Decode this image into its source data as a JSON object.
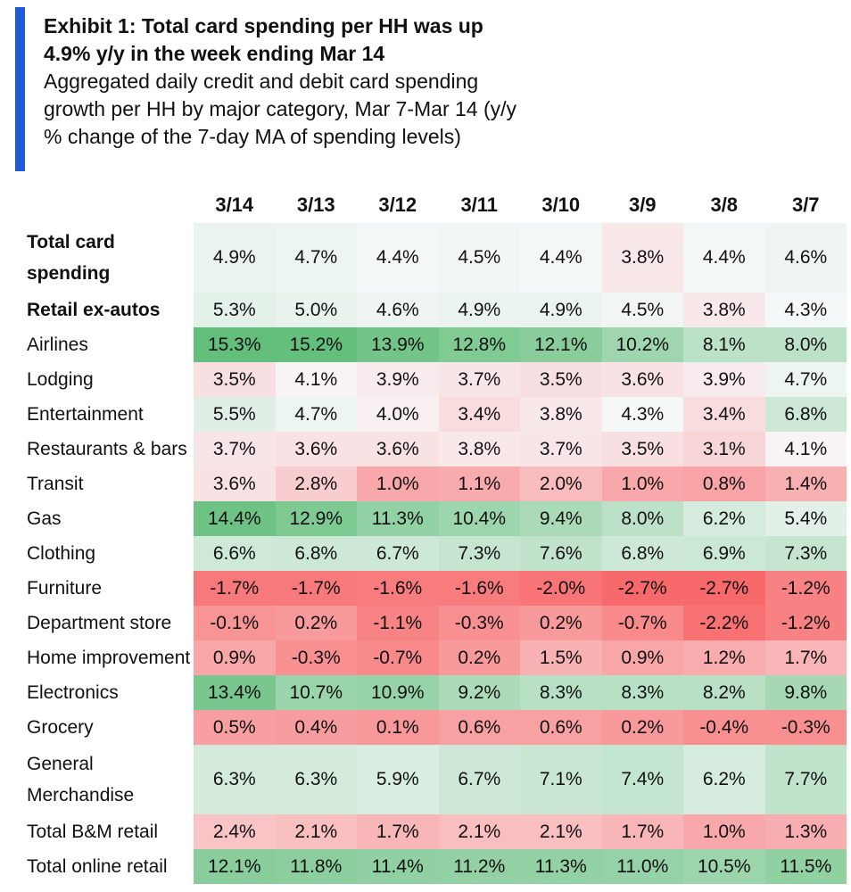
{
  "exhibit": {
    "title_line1": "Exhibit 1: Total card spending per HH was up",
    "title_line2": "4.9% y/y in the week ending Mar 14",
    "subtitle_line1": "Aggregated daily credit and debit card spending",
    "subtitle_line2": "growth per HH by major category, Mar 7-Mar 14 (y/y",
    "subtitle_line3": "% change of the 7-day MA of spending levels)"
  },
  "colors": {
    "accent": "#1f5bd6",
    "positive": "#63be7b",
    "neutral": "#f8f9fb",
    "negative": "#f8696b"
  },
  "chart_data": {
    "type": "table",
    "title": "Exhibit 1: Total card spending per HH was up 4.9% y/y in the week ending Mar 14",
    "unit": "%",
    "columns": [
      "3/14",
      "3/13",
      "3/12",
      "3/11",
      "3/10",
      "3/9",
      "3/8",
      "3/7"
    ],
    "rows": [
      {
        "label_lines": [
          "Total card",
          "spending"
        ],
        "bold": true,
        "values": [
          "4.9%",
          "4.7%",
          "4.4%",
          "4.5%",
          "4.4%",
          "3.8%",
          "4.4%",
          "4.6%"
        ]
      },
      {
        "label_lines": [
          "Retail ex-autos"
        ],
        "bold": true,
        "values": [
          "5.3%",
          "5.0%",
          "4.6%",
          "4.9%",
          "4.9%",
          "4.5%",
          "3.8%",
          "4.3%"
        ]
      },
      {
        "label_lines": [
          "Airlines"
        ],
        "bold": false,
        "values": [
          "15.3%",
          "15.2%",
          "13.9%",
          "12.8%",
          "12.1%",
          "10.2%",
          "8.1%",
          "8.0%"
        ]
      },
      {
        "label_lines": [
          "Lodging"
        ],
        "bold": false,
        "values": [
          "3.5%",
          "4.1%",
          "3.9%",
          "3.7%",
          "3.5%",
          "3.6%",
          "3.9%",
          "4.7%"
        ]
      },
      {
        "label_lines": [
          "Entertainment"
        ],
        "bold": false,
        "values": [
          "5.5%",
          "4.7%",
          "4.0%",
          "3.4%",
          "3.8%",
          "4.3%",
          "3.4%",
          "6.8%"
        ]
      },
      {
        "label_lines": [
          "Restaurants & bars"
        ],
        "bold": false,
        "values": [
          "3.7%",
          "3.6%",
          "3.6%",
          "3.8%",
          "3.7%",
          "3.5%",
          "3.1%",
          "4.1%"
        ]
      },
      {
        "label_lines": [
          "Transit"
        ],
        "bold": false,
        "values": [
          "3.6%",
          "2.8%",
          "1.0%",
          "1.1%",
          "2.0%",
          "1.0%",
          "0.8%",
          "1.4%"
        ]
      },
      {
        "label_lines": [
          "Gas"
        ],
        "bold": false,
        "values": [
          "14.4%",
          "12.9%",
          "11.3%",
          "10.4%",
          "9.4%",
          "8.0%",
          "6.2%",
          "5.4%"
        ]
      },
      {
        "label_lines": [
          "Clothing"
        ],
        "bold": false,
        "values": [
          "6.6%",
          "6.8%",
          "6.7%",
          "7.3%",
          "7.6%",
          "6.8%",
          "6.9%",
          "7.3%"
        ]
      },
      {
        "label_lines": [
          "Furniture"
        ],
        "bold": false,
        "values": [
          "-1.7%",
          "-1.7%",
          "-1.6%",
          "-1.6%",
          "-2.0%",
          "-2.7%",
          "-2.7%",
          "-1.2%"
        ]
      },
      {
        "label_lines": [
          "Department store"
        ],
        "bold": false,
        "values": [
          "-0.1%",
          "0.2%",
          "-1.1%",
          "-0.3%",
          "0.2%",
          "-0.7%",
          "-2.2%",
          "-1.2%"
        ]
      },
      {
        "label_lines": [
          "Home improvement"
        ],
        "bold": false,
        "values": [
          "0.9%",
          "-0.3%",
          "-0.7%",
          "0.2%",
          "1.5%",
          "0.9%",
          "1.2%",
          "1.7%"
        ]
      },
      {
        "label_lines": [
          "Electronics"
        ],
        "bold": false,
        "values": [
          "13.4%",
          "10.7%",
          "10.9%",
          "9.2%",
          "8.3%",
          "8.3%",
          "8.2%",
          "9.8%"
        ]
      },
      {
        "label_lines": [
          "Grocery"
        ],
        "bold": false,
        "values": [
          "0.5%",
          "0.4%",
          "0.1%",
          "0.6%",
          "0.6%",
          "0.2%",
          "-0.4%",
          "-0.3%"
        ]
      },
      {
        "label_lines": [
          "General",
          "Merchandise"
        ],
        "bold": false,
        "values": [
          "6.3%",
          "6.3%",
          "5.9%",
          "6.7%",
          "7.1%",
          "7.4%",
          "6.2%",
          "7.7%"
        ]
      },
      {
        "label_lines": [
          "Total B&M retail"
        ],
        "bold": false,
        "values": [
          "2.4%",
          "2.1%",
          "1.7%",
          "2.1%",
          "2.1%",
          "1.7%",
          "1.0%",
          "1.3%"
        ]
      },
      {
        "label_lines": [
          "Total online retail"
        ],
        "bold": false,
        "values": [
          "12.1%",
          "11.8%",
          "11.4%",
          "11.2%",
          "11.3%",
          "11.0%",
          "10.5%",
          "11.5%"
        ]
      }
    ]
  }
}
